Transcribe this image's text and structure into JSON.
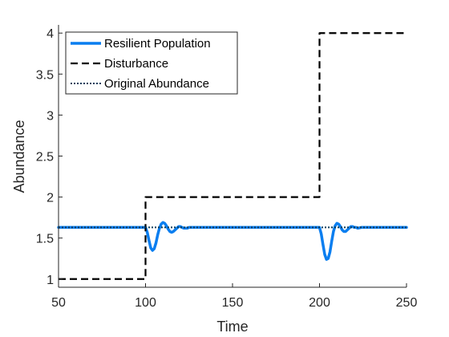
{
  "chart_data": {
    "type": "line",
    "title": "",
    "xlabel": "Time",
    "ylabel": "Abundance",
    "xlim": [
      50,
      250
    ],
    "ylim": [
      0.9,
      4.1
    ],
    "xticks": [
      50,
      100,
      150,
      200,
      250
    ],
    "yticks": [
      1,
      1.5,
      2,
      2.5,
      3,
      3.5,
      4
    ],
    "ytick_labels": [
      "1",
      "1.5",
      "2",
      "2.5",
      "3",
      "3.5",
      "4"
    ],
    "grid": false,
    "legend_position": "top-left",
    "series": [
      {
        "name": "Resilient Population",
        "style": "solid",
        "color": "#0a7ef0",
        "x": [
          50,
          100,
          101,
          102,
          103,
          104,
          105,
          106,
          107,
          108,
          109,
          110,
          111,
          112,
          113,
          114,
          115,
          116,
          117,
          118,
          119,
          120,
          121,
          122,
          123,
          124,
          125,
          127,
          130,
          135,
          140,
          150,
          160,
          170,
          180,
          190,
          200,
          201,
          202,
          203,
          204,
          205,
          206,
          207,
          208,
          209,
          210,
          211,
          212,
          213,
          214,
          215,
          216,
          217,
          218,
          219,
          220,
          221,
          222,
          224,
          227,
          230,
          240,
          250
        ],
        "y": [
          1.63,
          1.63,
          1.57,
          1.47,
          1.38,
          1.35,
          1.37,
          1.44,
          1.54,
          1.62,
          1.67,
          1.69,
          1.68,
          1.65,
          1.61,
          1.58,
          1.57,
          1.58,
          1.6,
          1.62,
          1.64,
          1.64,
          1.63,
          1.62,
          1.62,
          1.62,
          1.63,
          1.63,
          1.63,
          1.63,
          1.63,
          1.63,
          1.63,
          1.63,
          1.63,
          1.63,
          1.63,
          1.55,
          1.42,
          1.3,
          1.24,
          1.25,
          1.33,
          1.46,
          1.58,
          1.65,
          1.68,
          1.67,
          1.64,
          1.6,
          1.58,
          1.58,
          1.6,
          1.62,
          1.64,
          1.64,
          1.63,
          1.63,
          1.62,
          1.63,
          1.63,
          1.63,
          1.63,
          1.63
        ]
      },
      {
        "name": "Disturbance",
        "style": "dashed",
        "color": "#000000",
        "x": [
          50,
          100,
          100,
          200,
          200,
          250
        ],
        "y": [
          1,
          1,
          2,
          2,
          4,
          4
        ]
      },
      {
        "name": "Original Abundance",
        "style": "dotted",
        "color": "#0b3d5c",
        "x": [
          50,
          250
        ],
        "y": [
          1.63,
          1.63
        ]
      }
    ]
  }
}
